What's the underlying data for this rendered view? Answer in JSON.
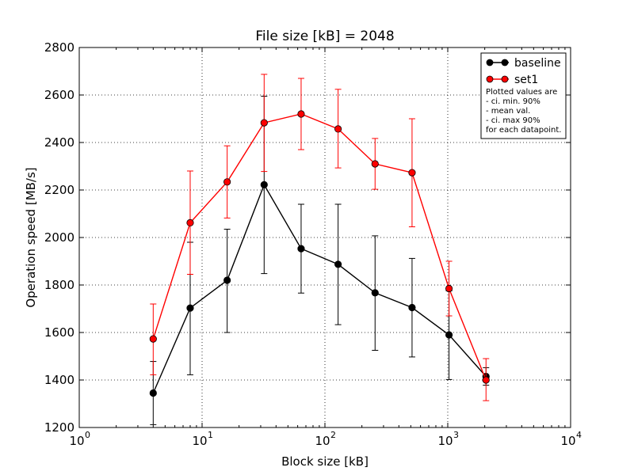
{
  "chart_data": {
    "type": "line",
    "title": "File size [kB] = 2048",
    "xlabel": "Block size [kB]",
    "ylabel": "Operation speed [MB/s]",
    "x_scale": "log",
    "xlim": [
      1,
      10000
    ],
    "ylim": [
      1200,
      2800
    ],
    "x_ticks": [
      {
        "base": "10",
        "exp": "0"
      },
      {
        "base": "10",
        "exp": "1"
      },
      {
        "base": "10",
        "exp": "2"
      },
      {
        "base": "10",
        "exp": "3"
      },
      {
        "base": "10",
        "exp": "4"
      }
    ],
    "y_ticks": [
      "1200",
      "1400",
      "1600",
      "1800",
      "2000",
      "2200",
      "2400",
      "2600",
      "2800"
    ],
    "grid": true,
    "legend_position": "top-right",
    "x": [
      4,
      8,
      16,
      32,
      64,
      128,
      256,
      512,
      1024,
      2048
    ],
    "series": [
      {
        "name": "baseline",
        "color": "#000000",
        "values": [
          1345,
          1703,
          1820,
          2222,
          1953,
          1887,
          1767,
          1705,
          1590,
          1415
        ],
        "ci_min": [
          1212,
          1422,
          1600,
          1848,
          1766,
          1633,
          1525,
          1497,
          1402,
          1378
        ],
        "ci_max": [
          1478,
          1980,
          2035,
          2595,
          2140,
          2140,
          2007,
          1912,
          1775,
          1452
        ]
      },
      {
        "name": "set1",
        "color": "#ff0000",
        "values": [
          1573,
          2062,
          2234,
          2483,
          2520,
          2457,
          2310,
          2273,
          1785,
          1400
        ],
        "ci_min": [
          1422,
          1845,
          2082,
          2278,
          2370,
          2293,
          2203,
          2045,
          1670,
          1313
        ],
        "ci_max": [
          1720,
          2280,
          2386,
          2687,
          2670,
          2624,
          2417,
          2500,
          1900,
          1490
        ]
      }
    ],
    "legend_note": [
      "Plotted values are",
      "  - ci. min. 90%",
      "  - mean val.",
      "  - ci. max 90%",
      "for each datapoint."
    ]
  }
}
